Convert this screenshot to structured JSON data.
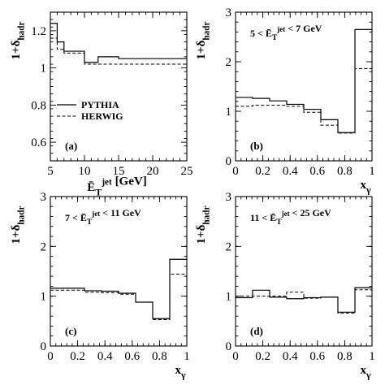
{
  "chart_data": [
    {
      "type": "step",
      "panel": "(a)",
      "ylabel": "1+δ_hadr",
      "xlabel": "Ē_T^jet [GeV]",
      "xlim": [
        5,
        25
      ],
      "ylim": [
        0.5,
        1.3
      ],
      "xticks": [
        "5",
        "10",
        "15",
        "20",
        "25"
      ],
      "yticks": [
        "0.6",
        "0.8",
        "1",
        "1.2"
      ],
      "bin_edges": [
        5,
        6,
        7,
        10,
        12,
        15,
        20,
        25
      ],
      "legend": {
        "entries": [
          "PYTHIA",
          "HERWIG"
        ],
        "placement": "center-left"
      },
      "series": [
        {
          "name": "PYTHIA",
          "style": "solid",
          "values": [
            1.24,
            1.14,
            1.09,
            1.03,
            1.06,
            1.05,
            1.05
          ]
        },
        {
          "name": "HERWIG",
          "style": "dashed",
          "values": [
            1.16,
            1.1,
            1.08,
            1.02,
            1.02,
            1.02,
            1.02
          ]
        }
      ]
    },
    {
      "type": "step",
      "panel": "(b)",
      "ylabel": "1+δ_hadr",
      "xlabel": "x_γ",
      "annotation": "5 < Ē_T^jet < 7 GeV",
      "xlim": [
        0,
        1
      ],
      "ylim": [
        0,
        3
      ],
      "xticks": [
        "0",
        "0.2",
        "0.4",
        "0.6",
        "0.8",
        "1"
      ],
      "yticks": [
        "0",
        "1",
        "2",
        "3"
      ],
      "bin_edges": [
        0,
        0.125,
        0.25,
        0.375,
        0.5,
        0.625,
        0.75,
        0.875,
        1.0
      ],
      "series": [
        {
          "name": "PYTHIA",
          "style": "solid",
          "values": [
            1.28,
            1.26,
            1.21,
            1.14,
            1.04,
            0.83,
            0.57,
            2.65
          ]
        },
        {
          "name": "HERWIG",
          "style": "dashed",
          "values": [
            1.1,
            1.12,
            1.12,
            1.1,
            0.98,
            0.72,
            0.56,
            1.86
          ]
        }
      ]
    },
    {
      "type": "step",
      "panel": "(c)",
      "ylabel": "1+δ_hadr",
      "xlabel": "x_γ",
      "annotation": "7 < Ē_T^jet < 11 GeV",
      "xlim": [
        0,
        1
      ],
      "ylim": [
        0,
        3
      ],
      "xticks": [
        "0",
        "0.2",
        "0.4",
        "0.6",
        "0.8",
        "1"
      ],
      "yticks": [
        "0",
        "1",
        "2",
        "3"
      ],
      "bin_edges": [
        0,
        0.25,
        0.375,
        0.5,
        0.625,
        0.75,
        0.875,
        1.0
      ],
      "series": [
        {
          "name": "PYTHIA",
          "style": "solid",
          "values": [
            1.16,
            1.11,
            1.1,
            1.06,
            0.88,
            0.55,
            1.74
          ]
        },
        {
          "name": "HERWIG",
          "style": "dashed",
          "values": [
            1.12,
            1.08,
            1.07,
            1.04,
            0.88,
            0.53,
            1.44
          ]
        }
      ]
    },
    {
      "type": "step",
      "panel": "(d)",
      "ylabel": "1+δ_hadr",
      "xlabel": "x_γ",
      "annotation": "11 < Ē_T^jet < 25 GeV",
      "xlim": [
        0,
        1
      ],
      "ylim": [
        0,
        3
      ],
      "xticks": [
        "0",
        "0.2",
        "0.4",
        "0.6",
        "0.8",
        "1"
      ],
      "yticks": [
        "0",
        "1",
        "2",
        "3"
      ],
      "bin_edges": [
        0,
        0.125,
        0.25,
        0.375,
        0.5,
        0.625,
        0.75,
        0.875,
        1.0
      ],
      "series": [
        {
          "name": "PYTHIA",
          "style": "solid",
          "values": [
            0.97,
            1.12,
            0.98,
            0.95,
            0.97,
            0.98,
            0.68,
            1.17
          ]
        },
        {
          "name": "HERWIG",
          "style": "dashed",
          "values": [
            1.0,
            1.0,
            1.0,
            1.08,
            0.96,
            0.98,
            0.66,
            1.13
          ]
        }
      ]
    }
  ]
}
